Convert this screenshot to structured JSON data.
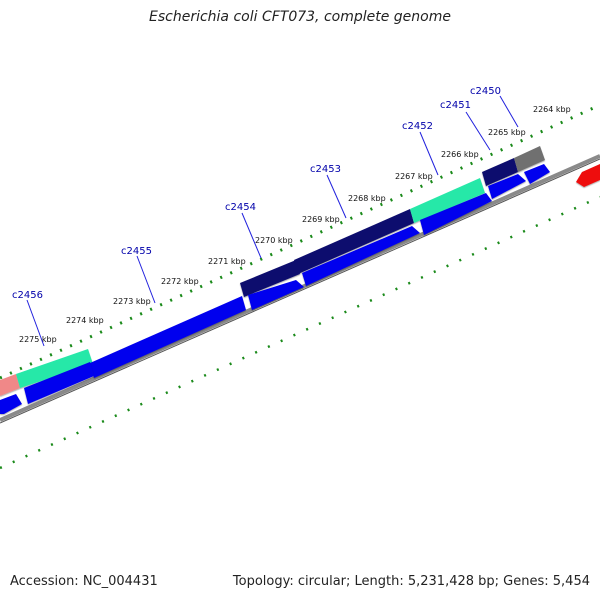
{
  "title": "Escherichia coli CFT073, complete genome",
  "footer": {
    "accession": "Accession: NC_004431",
    "summary": "Topology: circular; Length: 5,231,428 bp; Genes: 5,454"
  },
  "colors": {
    "forward_cds": "#0000ee",
    "navy_cds": "#10106e",
    "teal_cds": "#28e8a8",
    "gray_cds": "#707070",
    "red_cds": "#ee1010",
    "pink_cds": "#f08888",
    "backbone": "#888888",
    "tick": "#1a8a1a",
    "label": "#0000aa"
  },
  "ticks": [
    {
      "label": "2264 kbp"
    },
    {
      "label": "2265 kbp"
    },
    {
      "label": "2266 kbp"
    },
    {
      "label": "2267 kbp"
    },
    {
      "label": "2268 kbp"
    },
    {
      "label": "2269 kbp"
    },
    {
      "label": "2270 kbp"
    },
    {
      "label": "2271 kbp"
    },
    {
      "label": "2272 kbp"
    },
    {
      "label": "2273 kbp"
    },
    {
      "label": "2274 kbp"
    },
    {
      "label": "2275 kbp"
    }
  ],
  "genes": [
    {
      "name": "c2450"
    },
    {
      "name": "c2451"
    },
    {
      "name": "c2452"
    },
    {
      "name": "c2453"
    },
    {
      "name": "c2454"
    },
    {
      "name": "c2455"
    },
    {
      "name": "c2456"
    }
  ]
}
